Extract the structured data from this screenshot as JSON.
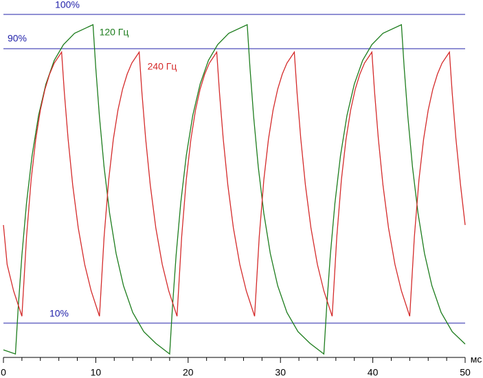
{
  "chart_data": {
    "type": "line",
    "x_label": "мс",
    "xlim": [
      0,
      50
    ],
    "ylim": [
      0,
      104
    ],
    "xticks": [
      0,
      10,
      20,
      30,
      40,
      50
    ],
    "xminorticks": [
      2,
      4,
      6,
      8,
      12,
      14,
      16,
      18,
      22,
      24,
      26,
      28,
      32,
      34,
      36,
      38,
      42,
      44,
      46,
      48
    ],
    "reference_lines": [
      {
        "value": 100,
        "label": "100%"
      },
      {
        "value": 90,
        "label": "90%"
      },
      {
        "value": 10,
        "label": "10%"
      }
    ],
    "reference_color": "#2222aa",
    "series": [
      {
        "name": "120 Гц",
        "color": "#1c7c1c",
        "x": [
          0,
          1.3,
          1.6,
          2.0,
          2.5,
          3.1,
          3.8,
          4.6,
          5.5,
          6.5,
          7.7,
          9.7,
          10.0,
          10.4,
          10.9,
          11.5,
          12.2,
          13.0,
          14.0,
          15.2,
          16.5,
          18.0,
          18.3,
          18.7,
          19.2,
          19.8,
          20.5,
          21.3,
          22.2,
          23.2,
          24.4,
          26.4,
          26.7,
          27.1,
          27.6,
          28.2,
          28.9,
          29.7,
          30.7,
          31.9,
          33.2,
          34.7,
          35.0,
          35.4,
          35.9,
          36.5,
          37.2,
          38.0,
          38.9,
          39.9,
          41.1,
          43.1,
          43.4,
          43.8,
          44.3,
          44.9,
          45.6,
          46.4,
          47.4,
          48.6,
          50.0
        ],
        "values": [
          2.2,
          1,
          14.5,
          29.8,
          45.0,
          58.8,
          70.5,
          79.7,
          86.6,
          91.2,
          94.5,
          97,
          84.4,
          70.1,
          55.5,
          42.0,
          30.3,
          20.9,
          13.1,
          7.5,
          4.1,
          1,
          14.5,
          29.8,
          45.0,
          58.8,
          70.5,
          79.7,
          86.6,
          91.2,
          94.5,
          97,
          84.4,
          70.1,
          55.5,
          42.0,
          30.3,
          20.9,
          13.1,
          7.5,
          4.1,
          1,
          14.5,
          29.8,
          45.0,
          58.8,
          70.5,
          79.7,
          86.6,
          91.2,
          94.5,
          97,
          84.4,
          70.1,
          55.5,
          42.0,
          30.3,
          20.9,
          13.1,
          7.5,
          3.9
        ]
      },
      {
        "name": "240 Гц",
        "color": "#d42a2a",
        "x": [
          0,
          0.4,
          1.1,
          2.0,
          2.5,
          3.0,
          3.5,
          4.0,
          4.5,
          5.0,
          5.5,
          6.3,
          6.6,
          7.0,
          7.5,
          8.1,
          8.8,
          9.5,
          10.4,
          10.9,
          11.4,
          11.9,
          12.4,
          12.9,
          13.4,
          13.9,
          14.7,
          15.0,
          15.4,
          15.9,
          16.5,
          17.2,
          17.9,
          18.8,
          19.3,
          19.8,
          20.3,
          20.8,
          21.3,
          21.8,
          22.3,
          23.1,
          23.4,
          23.8,
          24.3,
          24.9,
          25.6,
          26.3,
          27.2,
          27.7,
          28.2,
          28.7,
          29.2,
          29.7,
          30.2,
          30.7,
          31.5,
          31.8,
          32.2,
          32.7,
          33.3,
          34.0,
          34.7,
          35.6,
          36.1,
          36.6,
          37.1,
          37.6,
          38.1,
          38.6,
          39.1,
          39.9,
          40.2,
          40.6,
          41.1,
          41.7,
          42.4,
          43.1,
          44.0,
          44.5,
          45.0,
          45.5,
          46.0,
          46.5,
          47.0,
          47.5,
          48.3,
          48.6,
          49.0,
          49.5,
          50.0
        ],
        "values": [
          38.6,
          27.1,
          19.4,
          12,
          35.1,
          51.8,
          63.6,
          72.1,
          78.2,
          82.6,
          85.8,
          89,
          77.1,
          63.8,
          50.3,
          37.8,
          27.1,
          19.4,
          12,
          35.1,
          51.8,
          63.6,
          72.1,
          78.2,
          82.6,
          85.8,
          89,
          77.1,
          63.8,
          50.3,
          37.8,
          27.1,
          19.4,
          12,
          35.1,
          51.8,
          63.6,
          72.1,
          78.2,
          82.6,
          85.8,
          89,
          77.1,
          63.8,
          50.3,
          37.8,
          27.1,
          19.4,
          12,
          35.1,
          51.8,
          63.6,
          72.1,
          78.2,
          82.6,
          85.8,
          89,
          77.1,
          63.8,
          50.3,
          37.8,
          27.1,
          19.4,
          12,
          35.1,
          51.8,
          63.6,
          72.1,
          78.2,
          82.6,
          85.8,
          89,
          77.1,
          63.8,
          50.3,
          37.8,
          27.1,
          19.4,
          12,
          35.1,
          51.8,
          63.6,
          72.1,
          78.2,
          82.6,
          85.8,
          89,
          77.1,
          63.8,
          50.3,
          38.6
        ]
      }
    ]
  }
}
